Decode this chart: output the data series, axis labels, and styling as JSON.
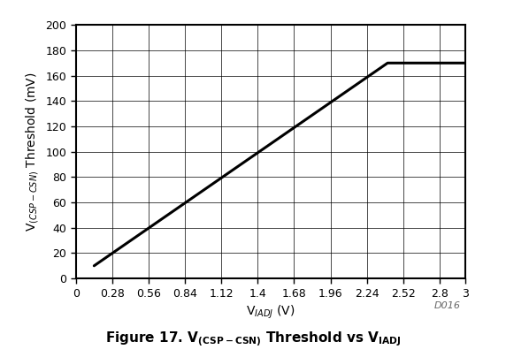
{
  "x_data": [
    0.14,
    2.4,
    3.0
  ],
  "y_data": [
    10,
    170,
    170
  ],
  "xlim": [
    0,
    3.0
  ],
  "ylim": [
    0,
    200
  ],
  "xticks": [
    0,
    0.28,
    0.56,
    0.84,
    1.12,
    1.4,
    1.68,
    1.96,
    2.24,
    2.52,
    2.8,
    3.0
  ],
  "yticks": [
    0,
    20,
    40,
    60,
    80,
    100,
    120,
    140,
    160,
    180,
    200
  ],
  "xlabel": "V$_{IADJ}$ (V)",
  "ylabel": "V$_{(CSP-CSN)}$ Threshold (mV)",
  "watermark": "D016",
  "caption": "Figure 17. V",
  "caption_sub": "(CSP-CSN)",
  "caption_rest": " Threshold vs V",
  "caption_sub2": "IADJ",
  "line_color": "#000000",
  "line_width": 2.2,
  "grid_color": "#000000",
  "grid_linewidth": 0.5,
  "background_color": "#ffffff",
  "spine_color": "#000000",
  "tick_fontsize": 9,
  "label_fontsize": 10,
  "caption_fontsize": 11
}
